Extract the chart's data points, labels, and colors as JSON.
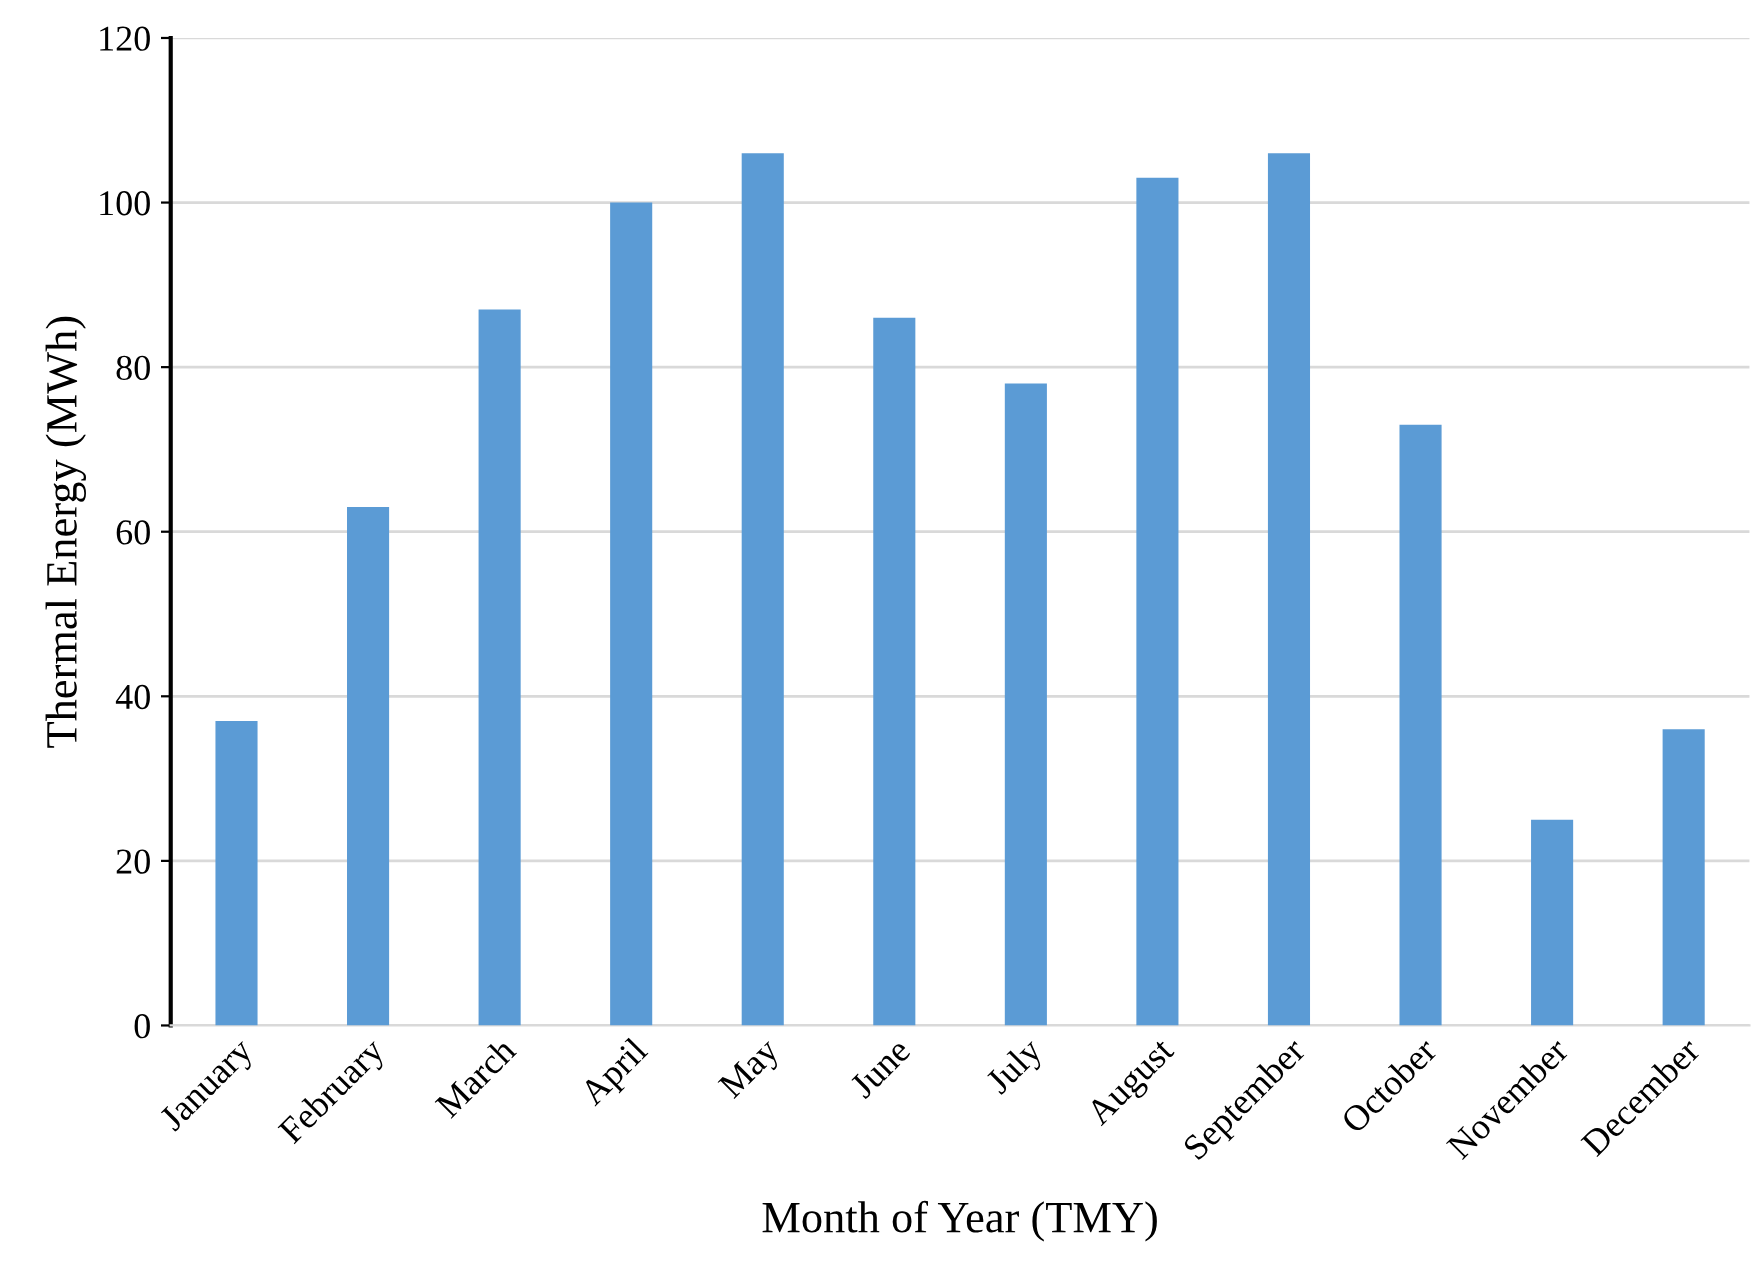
{
  "chart_data": {
    "type": "bar",
    "xlabel": "Month of Year (TMY)",
    "ylabel": "Thermal Energy (MWh)",
    "categories": [
      "January",
      "February",
      "March",
      "April",
      "May",
      "June",
      "July",
      "August",
      "September",
      "October",
      "November",
      "December"
    ],
    "values": [
      37,
      63,
      87,
      100,
      106,
      86,
      78,
      103,
      106,
      73,
      25,
      36
    ],
    "color": "#5b9bd5",
    "ylim": [
      0,
      120
    ],
    "yticks": [
      0,
      20,
      40,
      60,
      80,
      100,
      120
    ],
    "grid": "y",
    "legend": false
  }
}
